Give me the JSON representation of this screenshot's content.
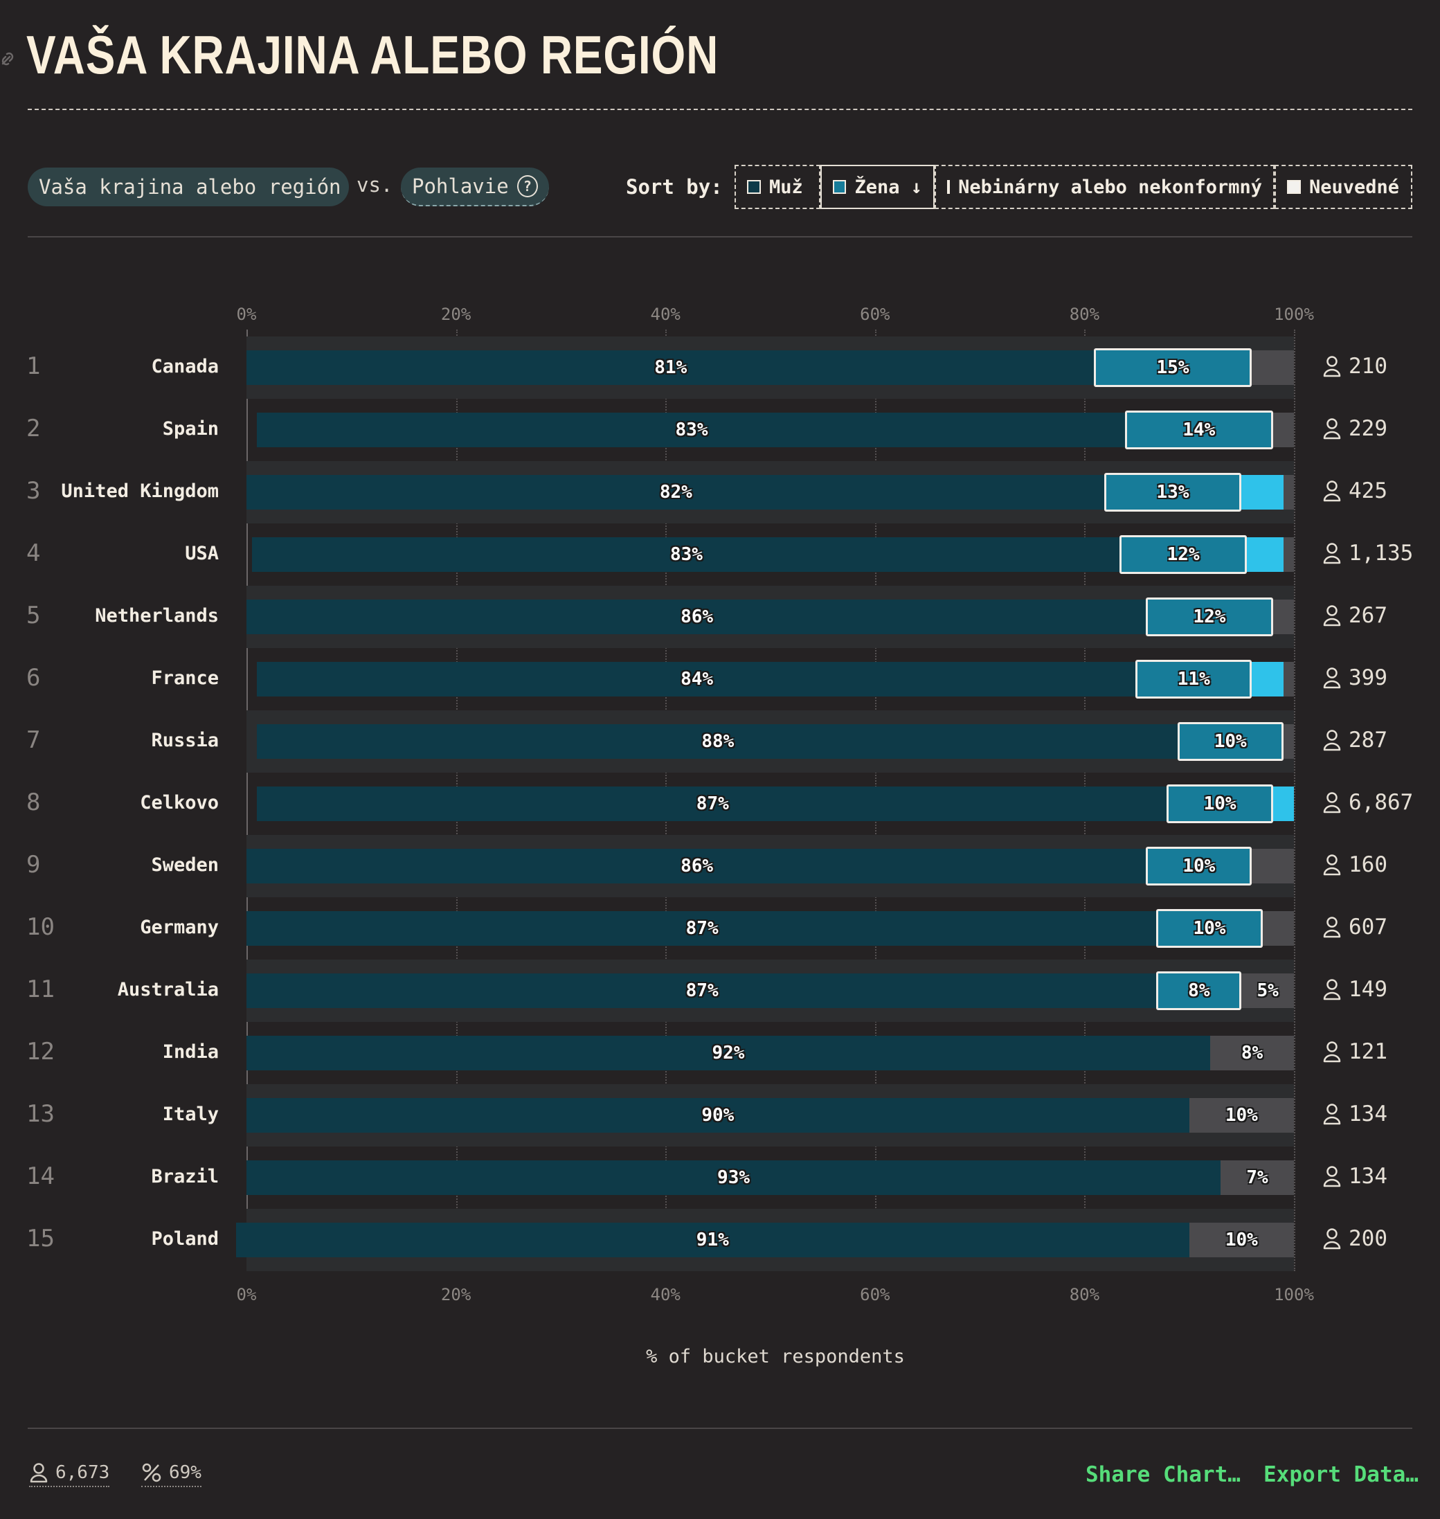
{
  "header": {
    "title": "VAŠA KRAJINA ALEBO REGIÓN"
  },
  "controls": {
    "dimension_a": "Vaša krajina alebo región",
    "vs": "vs.",
    "dimension_b": "Pohlavie",
    "sort_by_label": "Sort by:",
    "sort_options": [
      {
        "label": "Muž",
        "color": "#0e3a48"
      },
      {
        "label": "Žena ↓",
        "color": "#177c99"
      },
      {
        "label": "Nebinárny alebo nekonformný",
        "color": "#2fc2ea"
      },
      {
        "label": "Neuvedné",
        "color": "#f3f1ee"
      }
    ]
  },
  "axis": {
    "ticks": [
      "0%",
      "20%",
      "40%",
      "60%",
      "80%",
      "100%"
    ],
    "title": "% of bucket respondents"
  },
  "chart_data": {
    "type": "bar",
    "orientation": "horizontal",
    "stacked": true,
    "xlim": [
      0,
      100
    ],
    "xlabel": "% of bucket respondents",
    "series_names": [
      "Muž",
      "Žena",
      "Nebinárny alebo nekonformný",
      "Neuvedné"
    ],
    "colors": {
      "muz": "#0e3a48",
      "zena": "#177c99",
      "nb": "#2fc2ea",
      "nu": "#4b4a4d"
    },
    "rows": [
      {
        "rank": "1",
        "country": "Canada",
        "count": "210",
        "muz": 81,
        "zena": 15,
        "nb": 0,
        "nu": 4,
        "muz_label": "81%",
        "zena_label": "15%",
        "nu_label": ""
      },
      {
        "rank": "2",
        "country": "Spain",
        "count": "229",
        "muz": 83,
        "zena": 14,
        "nb": 0,
        "nu": 2,
        "muz_label": "83%",
        "zena_label": "14%",
        "nu_label": ""
      },
      {
        "rank": "3",
        "country": "United Kingdom",
        "count": "425",
        "muz": 82,
        "zena": 13,
        "nb": 4,
        "nu": 1,
        "muz_label": "82%",
        "zena_label": "13%",
        "nu_label": ""
      },
      {
        "rank": "4",
        "country": "USA",
        "count": "1,135",
        "muz": 83,
        "zena": 12,
        "nb": 3.5,
        "nu": 1,
        "muz_label": "83%",
        "zena_label": "12%",
        "nu_label": ""
      },
      {
        "rank": "5",
        "country": "Netherlands",
        "count": "267",
        "muz": 86,
        "zena": 12,
        "nb": 0,
        "nu": 2,
        "muz_label": "86%",
        "zena_label": "12%",
        "nu_label": ""
      },
      {
        "rank": "6",
        "country": "France",
        "count": "399",
        "muz": 84,
        "zena": 11,
        "nb": 3,
        "nu": 1,
        "muz_label": "84%",
        "zena_label": "11%",
        "nu_label": ""
      },
      {
        "rank": "7",
        "country": "Russia",
        "count": "287",
        "muz": 88,
        "zena": 10,
        "nb": 0,
        "nu": 1,
        "muz_label": "88%",
        "zena_label": "10%",
        "nu_label": ""
      },
      {
        "rank": "8",
        "country": "Celkovo",
        "count": "6,867",
        "muz": 87,
        "zena": 10,
        "nb": 2,
        "nu": 0,
        "muz_label": "87%",
        "zena_label": "10%",
        "nu_label": ""
      },
      {
        "rank": "9",
        "country": "Sweden",
        "count": "160",
        "muz": 86,
        "zena": 10,
        "nb": 0,
        "nu": 4,
        "muz_label": "86%",
        "zena_label": "10%",
        "nu_label": ""
      },
      {
        "rank": "10",
        "country": "Germany",
        "count": "607",
        "muz": 87,
        "zena": 10,
        "nb": 0,
        "nu": 3,
        "muz_label": "87%",
        "zena_label": "10%",
        "nu_label": ""
      },
      {
        "rank": "11",
        "country": "Australia",
        "count": "149",
        "muz": 87,
        "zena": 8,
        "nb": 0,
        "nu": 5,
        "muz_label": "87%",
        "zena_label": "8%",
        "nu_label": "5%"
      },
      {
        "rank": "12",
        "country": "India",
        "count": "121",
        "muz": 92,
        "zena": 0,
        "nb": 0,
        "nu": 8,
        "muz_label": "92%",
        "zena_label": "",
        "nu_label": "8%"
      },
      {
        "rank": "13",
        "country": "Italy",
        "count": "134",
        "muz": 90,
        "zena": 0,
        "nb": 0,
        "nu": 10,
        "muz_label": "90%",
        "zena_label": "",
        "nu_label": "10%"
      },
      {
        "rank": "14",
        "country": "Brazil",
        "count": "134",
        "muz": 93,
        "zena": 0,
        "nb": 0,
        "nu": 7,
        "muz_label": "93%",
        "zena_label": "",
        "nu_label": "7%"
      },
      {
        "rank": "15",
        "country": "Poland",
        "count": "200",
        "muz": 91,
        "zena": 0,
        "nb": 0,
        "nu": 10,
        "muz_label": "91%",
        "zena_label": "",
        "nu_label": "10%"
      }
    ]
  },
  "footer": {
    "respondents": "6,673",
    "percent": "69%",
    "share": "Share Chart…",
    "export": "Export Data…"
  }
}
